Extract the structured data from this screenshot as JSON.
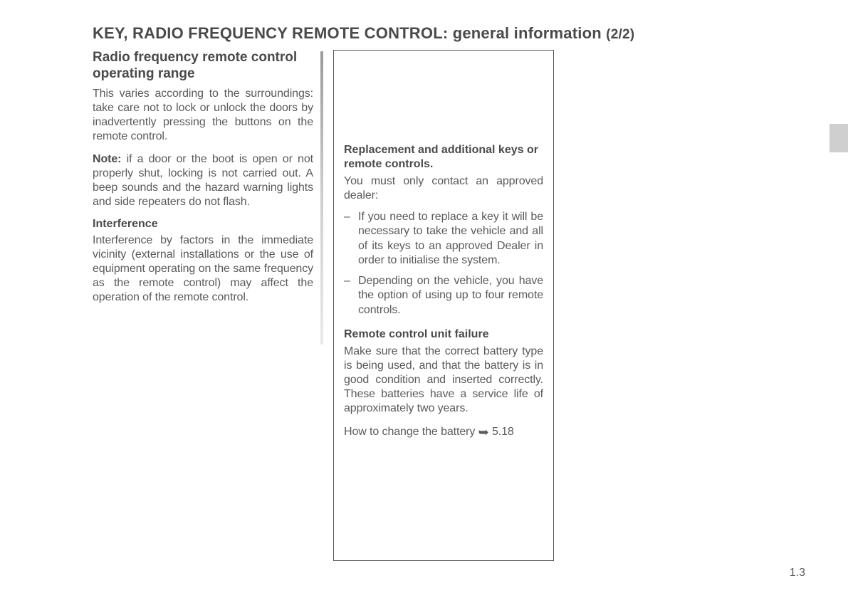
{
  "title": {
    "main": "KEY, RADIO FREQUENCY REMOTE CONTROL:",
    "sub": "general information",
    "part": "(2/2)"
  },
  "left": {
    "heading": "Radio frequency remote control operating range",
    "p1": "This varies according to the surround­ings: take care not to lock or unlock the doors by inadvertently pressing the but­tons on the remote control.",
    "note_label": "Note:",
    "note_body": " if a door or the boot is open or not properly shut, locking is not carried out. A beep sounds and the hazard warning lights and side repeaters do not flash.",
    "sub_heading": "Interference",
    "p2": "Interference by factors in the immediate vicinity (external installations or the use of equipment operating on the same frequency as the remote control) may affect the operation of the remote con­trol."
  },
  "box": {
    "h1": "Replacement and additional keys or remote controls.",
    "p1": "You must only contact an approved dealer:",
    "li1": "If you need to replace a key it will be necessary to take the vehicle and all of its keys to an approved Dealer in order to initialise the system.",
    "li2": "Depending on the vehicle, you have the option of using up to four remote controls.",
    "h2": "Remote control unit failure",
    "p2": "Make sure that the correct battery type is being used, and that the battery is in good condition and in­serted correctly. These batteries have a service life of approximately two years.",
    "p3_pre": "How to change the battery ",
    "p3_ref": " 5.18"
  },
  "page_number": "1.3"
}
